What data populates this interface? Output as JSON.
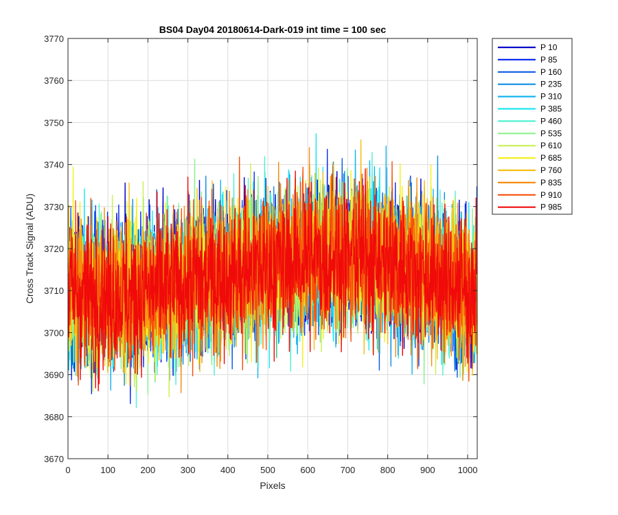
{
  "chart_data": {
    "type": "line",
    "title": "BS04 Day04 20180614-Dark-019 int time = 100 sec",
    "xlabel": "Pixels",
    "ylabel": "Cross Track Signal (ADU)",
    "xlim": [
      0,
      1024
    ],
    "ylim": [
      3670,
      3770
    ],
    "xticks": [
      0,
      100,
      200,
      300,
      400,
      500,
      600,
      700,
      800,
      900,
      1000
    ],
    "yticks": [
      3670,
      3680,
      3690,
      3700,
      3710,
      3720,
      3730,
      3740,
      3750,
      3760,
      3770
    ],
    "xtick_labels": [
      "0",
      "100",
      "200",
      "300",
      "400",
      "500",
      "600",
      "700",
      "800",
      "900",
      "1000"
    ],
    "ytick_labels": [
      "3670",
      "3680",
      "3690",
      "3700",
      "3710",
      "3720",
      "3730",
      "3740",
      "3750",
      "3760",
      "3770"
    ],
    "grid": true,
    "legend_position": "outside-top-right",
    "trend": {
      "description": "noisy dark-frame signal, one value per pixel 0-1023",
      "x": [
        0,
        100,
        200,
        300,
        400,
        500,
        600,
        700,
        800,
        900,
        1024
      ],
      "mean": [
        3710,
        3709,
        3710,
        3712,
        3714,
        3716,
        3718,
        3719,
        3717,
        3714,
        3710
      ],
      "noise_std": 8.5
    },
    "series": [
      {
        "name": "P 10",
        "color": "#0000c8"
      },
      {
        "name": "P 85",
        "color": "#0a2ef0"
      },
      {
        "name": "P 160",
        "color": "#0a5ae6"
      },
      {
        "name": "P 235",
        "color": "#0f8ce6"
      },
      {
        "name": "P 310",
        "color": "#14b4f0"
      },
      {
        "name": "P 385",
        "color": "#1ee6f0"
      },
      {
        "name": "P 460",
        "color": "#50f0d2"
      },
      {
        "name": "P 535",
        "color": "#8cf08c"
      },
      {
        "name": "P 610",
        "color": "#c8f050"
      },
      {
        "name": "P 685",
        "color": "#f5f01e"
      },
      {
        "name": "P 760",
        "color": "#f5be14"
      },
      {
        "name": "P 835",
        "color": "#f58c0f"
      },
      {
        "name": "P 910",
        "color": "#f5500a"
      },
      {
        "name": "P 985",
        "color": "#f00a0a"
      }
    ]
  }
}
